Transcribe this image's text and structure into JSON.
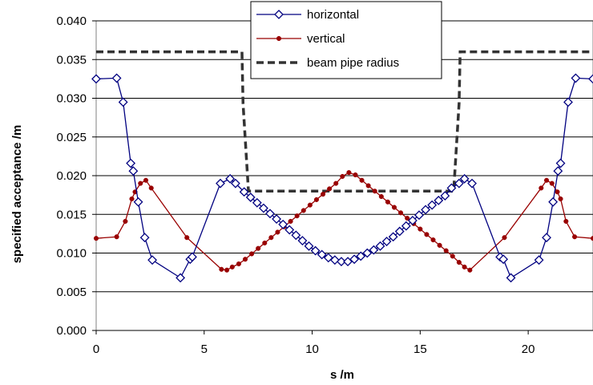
{
  "chart_data": {
    "type": "line",
    "title": "",
    "xlabel": "s /m",
    "ylabel": "specified acceptance /m",
    "xlim": [
      0,
      23
    ],
    "ylim": [
      0,
      0.04
    ],
    "xticks": [
      "0",
      "5",
      "10",
      "15",
      "20"
    ],
    "yticks": [
      "0.000",
      "0.005",
      "0.010",
      "0.015",
      "0.020",
      "0.025",
      "0.030",
      "0.035",
      "0.040"
    ],
    "grid": "horizontal",
    "legend_position": "top-center",
    "series": [
      {
        "name": "horizontal",
        "color": "#000080",
        "marker": "diamond",
        "points": [
          [
            0.0,
            0.0325
          ],
          [
            0.95,
            0.0326
          ],
          [
            1.25,
            0.0295
          ],
          [
            1.6,
            0.0216
          ],
          [
            1.72,
            0.0206
          ],
          [
            1.95,
            0.0166
          ],
          [
            2.25,
            0.012
          ],
          [
            2.6,
            0.0091
          ],
          [
            3.9,
            0.0068
          ],
          [
            4.35,
            0.0092
          ],
          [
            4.45,
            0.0095
          ],
          [
            5.75,
            0.019
          ],
          [
            6.2,
            0.0196
          ],
          [
            6.45,
            0.019
          ],
          [
            6.85,
            0.0179
          ],
          [
            7.15,
            0.0172
          ],
          [
            7.45,
            0.0165
          ],
          [
            7.75,
            0.0158
          ],
          [
            8.05,
            0.0151
          ],
          [
            8.35,
            0.0144
          ],
          [
            8.65,
            0.0137
          ],
          [
            8.95,
            0.013
          ],
          [
            9.25,
            0.0123
          ],
          [
            9.55,
            0.0116
          ],
          [
            9.85,
            0.0109
          ],
          [
            10.15,
            0.0103
          ],
          [
            10.45,
            0.0098
          ],
          [
            10.75,
            0.0094
          ],
          [
            11.05,
            0.0091
          ],
          [
            11.35,
            0.0089
          ],
          [
            11.65,
            0.0089
          ],
          [
            11.95,
            0.0092
          ],
          [
            12.25,
            0.0096
          ],
          [
            12.55,
            0.01
          ],
          [
            12.85,
            0.0104
          ],
          [
            13.15,
            0.0109
          ],
          [
            13.45,
            0.0115
          ],
          [
            13.75,
            0.0121
          ],
          [
            14.05,
            0.0128
          ],
          [
            14.35,
            0.0135
          ],
          [
            14.65,
            0.0142
          ],
          [
            14.95,
            0.0149
          ],
          [
            15.25,
            0.0156
          ],
          [
            15.55,
            0.0162
          ],
          [
            15.85,
            0.0168
          ],
          [
            16.15,
            0.0174
          ],
          [
            16.45,
            0.0184
          ],
          [
            16.8,
            0.019
          ],
          [
            17.05,
            0.0196
          ],
          [
            17.4,
            0.019
          ],
          [
            18.7,
            0.0095
          ],
          [
            18.85,
            0.0092
          ],
          [
            19.2,
            0.0068
          ],
          [
            20.5,
            0.0091
          ],
          [
            20.85,
            0.012
          ],
          [
            21.15,
            0.0166
          ],
          [
            21.38,
            0.0206
          ],
          [
            21.5,
            0.0216
          ],
          [
            21.85,
            0.0295
          ],
          [
            22.2,
            0.0326
          ],
          [
            23.0,
            0.0325
          ]
        ]
      },
      {
        "name": "vertical",
        "color": "#990000",
        "marker": "circle",
        "points": [
          [
            0.0,
            0.0119
          ],
          [
            0.95,
            0.0121
          ],
          [
            1.35,
            0.0141
          ],
          [
            1.65,
            0.017
          ],
          [
            1.8,
            0.0179
          ],
          [
            2.05,
            0.019
          ],
          [
            2.3,
            0.0194
          ],
          [
            2.55,
            0.0184
          ],
          [
            4.2,
            0.012
          ],
          [
            5.8,
            0.0079
          ],
          [
            6.05,
            0.0078
          ],
          [
            6.3,
            0.0082
          ],
          [
            6.6,
            0.0086
          ],
          [
            6.9,
            0.0092
          ],
          [
            7.2,
            0.0099
          ],
          [
            7.5,
            0.0106
          ],
          [
            7.8,
            0.0113
          ],
          [
            8.1,
            0.012
          ],
          [
            8.4,
            0.0127
          ],
          [
            8.7,
            0.0134
          ],
          [
            9.0,
            0.0141
          ],
          [
            9.3,
            0.0148
          ],
          [
            9.6,
            0.0155
          ],
          [
            9.9,
            0.0162
          ],
          [
            10.2,
            0.0169
          ],
          [
            10.5,
            0.0176
          ],
          [
            10.8,
            0.0183
          ],
          [
            11.1,
            0.019
          ],
          [
            11.4,
            0.0199
          ],
          [
            11.7,
            0.0204
          ],
          [
            12.0,
            0.0201
          ],
          [
            12.3,
            0.0194
          ],
          [
            12.6,
            0.0187
          ],
          [
            12.9,
            0.018
          ],
          [
            13.2,
            0.0173
          ],
          [
            13.5,
            0.0166
          ],
          [
            13.8,
            0.0159
          ],
          [
            14.1,
            0.0152
          ],
          [
            14.4,
            0.0145
          ],
          [
            14.7,
            0.0138
          ],
          [
            15.0,
            0.0131
          ],
          [
            15.3,
            0.0124
          ],
          [
            15.6,
            0.0117
          ],
          [
            15.9,
            0.011
          ],
          [
            16.2,
            0.0103
          ],
          [
            16.5,
            0.0096
          ],
          [
            16.8,
            0.0088
          ],
          [
            17.05,
            0.0082
          ],
          [
            17.3,
            0.0078
          ],
          [
            18.9,
            0.012
          ],
          [
            20.6,
            0.0184
          ],
          [
            20.85,
            0.0194
          ],
          [
            21.1,
            0.019
          ],
          [
            21.35,
            0.0179
          ],
          [
            21.5,
            0.017
          ],
          [
            21.75,
            0.0141
          ],
          [
            22.15,
            0.0121
          ],
          [
            23.0,
            0.0119
          ]
        ]
      },
      {
        "name": "beam pipe radius",
        "color": "#333333",
        "marker": "none",
        "style": "dashed",
        "points": [
          [
            0.0,
            0.036
          ],
          [
            6.75,
            0.036
          ],
          [
            6.8,
            0.0293
          ],
          [
            7.05,
            0.018
          ],
          [
            16.55,
            0.018
          ],
          [
            16.8,
            0.0293
          ],
          [
            16.85,
            0.036
          ],
          [
            23.0,
            0.036
          ]
        ]
      }
    ]
  }
}
